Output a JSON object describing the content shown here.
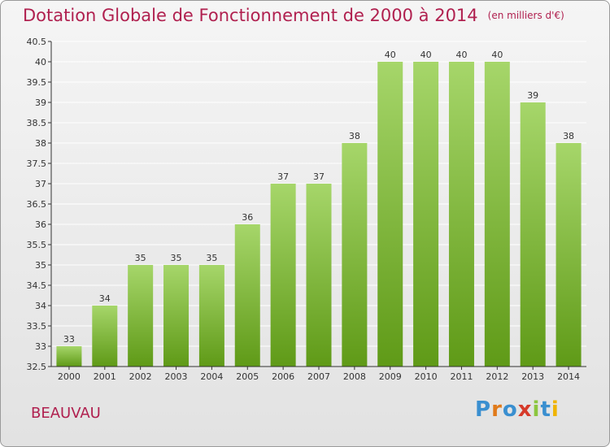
{
  "title": "Dotation Globale de Fonctionnement de 2000 à 2014",
  "unit": "(en milliers d'€)",
  "commune": "BEAUVAU",
  "logo": {
    "letters": [
      "P",
      "r",
      "o",
      "x",
      "i",
      "t",
      "i"
    ]
  },
  "colors": {
    "title": "#b0204f",
    "bar_top": "#a6d66a",
    "bar_bottom": "#5f9a17",
    "axis": "#333333",
    "grid": "#ffffff"
  },
  "chart_data": {
    "type": "bar",
    "title": "Dotation Globale de Fonctionnement de 2000 à 2014",
    "subtitle": "(en milliers d'€)",
    "xlabel": "",
    "ylabel": "",
    "categories": [
      "2000",
      "2001",
      "2002",
      "2003",
      "2004",
      "2005",
      "2006",
      "2007",
      "2008",
      "2009",
      "2010",
      "2011",
      "2012",
      "2013",
      "2014"
    ],
    "values": [
      33,
      34,
      35,
      35,
      35,
      36,
      37,
      37,
      38,
      40,
      40,
      40,
      40,
      39,
      38
    ],
    "ylim": [
      32.5,
      40.5
    ],
    "yticks": [
      32.5,
      33,
      33.5,
      34,
      34.5,
      35,
      35.5,
      36,
      36.5,
      37,
      37.5,
      38,
      38.5,
      39,
      39.5,
      40,
      40.5
    ],
    "grid": true,
    "data_labels": true,
    "legend": "none"
  }
}
